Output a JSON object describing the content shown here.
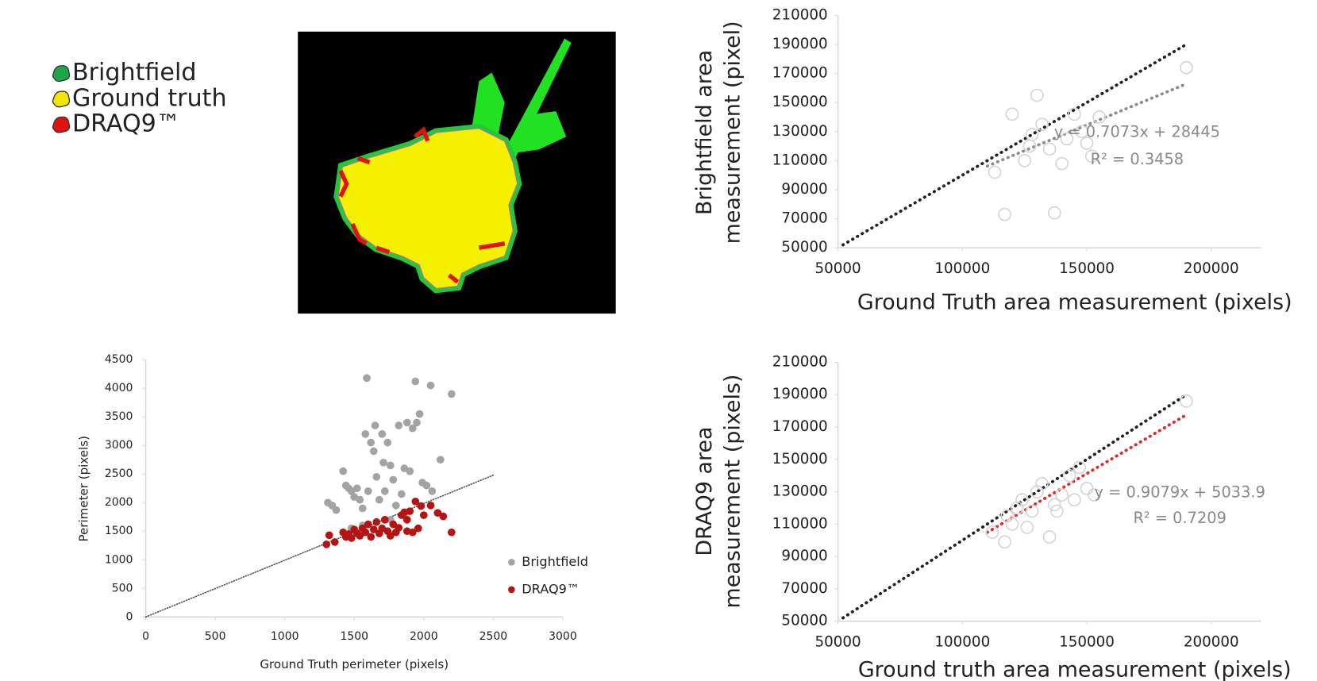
{
  "legend_panel": {
    "items": [
      {
        "name": "Brightfield",
        "color": "#1fa64a"
      },
      {
        "name": "Ground truth",
        "color": "#f2e600"
      },
      {
        "name": "DRAQ9™",
        "color": "#e01212"
      }
    ]
  },
  "chart_data": [
    {
      "type": "scatter",
      "ylabel": [
        "Brightfield area",
        "measurement (pixel)"
      ],
      "xlabel": "Ground Truth area measurement (pixels)",
      "xlim": [
        50000,
        220000
      ],
      "xticks": [
        50000,
        100000,
        150000,
        200000
      ],
      "ylim": [
        50000,
        210000
      ],
      "yticks": [
        50000,
        70000,
        90000,
        110000,
        130000,
        150000,
        170000,
        190000,
        210000
      ],
      "series": [
        {
          "color": "#d4d4d4",
          "marker": "hollow",
          "x": [
            113000,
            117000,
            120000,
            125000,
            127000,
            130000,
            132000,
            135000,
            137000,
            140000,
            145000,
            148000,
            150000,
            152000,
            190000,
            128000,
            142000,
            155000
          ],
          "values": [
            102000,
            73000,
            142000,
            110000,
            120000,
            155000,
            135000,
            118000,
            74000,
            108000,
            142000,
            130000,
            122000,
            113000,
            174000,
            128000,
            125000,
            140000
          ]
        }
      ],
      "lines": [
        {
          "color": "#222222",
          "x": [
            52000,
            190000
          ],
          "values": [
            52000,
            190000
          ]
        },
        {
          "color": "#8c8c8c",
          "x": [
            110000,
            190000
          ],
          "values": [
            106248,
            162832
          ]
        }
      ],
      "annotations": [
        "y = 0.7073x + 28445",
        "R² = 0.3458"
      ]
    },
    {
      "type": "scatter",
      "ylabel": [
        "Perimeter (pixels)"
      ],
      "xlabel": "Ground Truth perimeter (pixels)",
      "xlim": [
        0,
        3000
      ],
      "xticks": [
        0,
        500,
        1000,
        1500,
        2000,
        2500,
        3000
      ],
      "ylim": [
        0,
        4500
      ],
      "yticks": [
        0,
        500,
        1000,
        1500,
        2000,
        2500,
        3000,
        3500,
        4000,
        4500
      ],
      "legend": "lower right",
      "series": [
        {
          "name": "Brightfield",
          "color": "#a3a3a3",
          "marker": "filled",
          "x": [
            1310,
            1340,
            1370,
            1420,
            1440,
            1460,
            1480,
            1500,
            1520,
            1540,
            1560,
            1580,
            1590,
            1600,
            1620,
            1640,
            1650,
            1660,
            1680,
            1700,
            1710,
            1720,
            1740,
            1760,
            1780,
            1800,
            1820,
            1840,
            1860,
            1880,
            1900,
            1920,
            1940,
            1950,
            1970,
            1990,
            2020,
            2050,
            2060,
            2120,
            2200,
            1760,
            1560,
            1860,
            1480
          ],
          "values": [
            2000,
            1950,
            1870,
            2550,
            2300,
            2250,
            2200,
            2100,
            2250,
            2050,
            1900,
            3200,
            4180,
            2200,
            3050,
            2900,
            3350,
            2450,
            2050,
            3200,
            2700,
            2200,
            3050,
            2650,
            2400,
            1950,
            3350,
            2150,
            2600,
            3400,
            2550,
            3300,
            4120,
            3400,
            3550,
            2350,
            2300,
            4050,
            2200,
            2750,
            3900,
            1700,
            1600,
            1800,
            1550
          ]
        },
        {
          "name": "DRAQ9™",
          "color": "#b41414",
          "marker": "filled",
          "x": [
            1300,
            1320,
            1360,
            1420,
            1440,
            1460,
            1480,
            1500,
            1520,
            1540,
            1560,
            1580,
            1600,
            1620,
            1640,
            1660,
            1680,
            1700,
            1720,
            1740,
            1760,
            1780,
            1800,
            1820,
            1840,
            1860,
            1880,
            1900,
            1920,
            1940,
            1960,
            1980,
            2000,
            2050,
            2100,
            2140,
            2200,
            1880
          ],
          "values": [
            1270,
            1430,
            1310,
            1480,
            1400,
            1450,
            1380,
            1530,
            1460,
            1420,
            1550,
            1480,
            1620,
            1400,
            1530,
            1660,
            1460,
            1550,
            1700,
            1500,
            1420,
            1620,
            1480,
            1560,
            1780,
            1830,
            1700,
            1850,
            1480,
            2020,
            1550,
            1940,
            1780,
            1950,
            1820,
            1760,
            1480,
            1500
          ]
        }
      ],
      "lines": [
        {
          "color": "#555555",
          "x": [
            0,
            2500
          ],
          "values": [
            0,
            2480
          ]
        }
      ]
    },
    {
      "type": "scatter",
      "ylabel": [
        "DRAQ9 area",
        "measurement (pixels)"
      ],
      "xlabel": "Ground truth area measurement (pixels)",
      "xlim": [
        50000,
        220000
      ],
      "xticks": [
        50000,
        100000,
        150000,
        200000
      ],
      "ylim": [
        50000,
        210000
      ],
      "yticks": [
        50000,
        70000,
        90000,
        110000,
        130000,
        150000,
        170000,
        190000,
        210000
      ],
      "series": [
        {
          "color": "#d4d4d4",
          "marker": "hollow",
          "x": [
            112000,
            117000,
            118000,
            120000,
            122000,
            124000,
            126000,
            128000,
            130000,
            132000,
            135000,
            137000,
            140000,
            143000,
            145000,
            147000,
            150000,
            153000,
            190000,
            138000
          ],
          "values": [
            105000,
            99000,
            115000,
            110000,
            120000,
            125000,
            108000,
            118000,
            130000,
            135000,
            102000,
            122000,
            128000,
            140000,
            125000,
            145000,
            132000,
            128000,
            186000,
            118000
          ]
        }
      ],
      "lines": [
        {
          "color": "#222222",
          "x": [
            52000,
            190000
          ],
          "values": [
            52000,
            190000
          ]
        },
        {
          "color": "#dd2a2a",
          "x": [
            110000,
            190000
          ],
          "values": [
            104903,
            177534
          ]
        }
      ],
      "annotations": [
        "y = 0.9079x + 5033.9",
        "R² = 0.7209"
      ]
    }
  ]
}
